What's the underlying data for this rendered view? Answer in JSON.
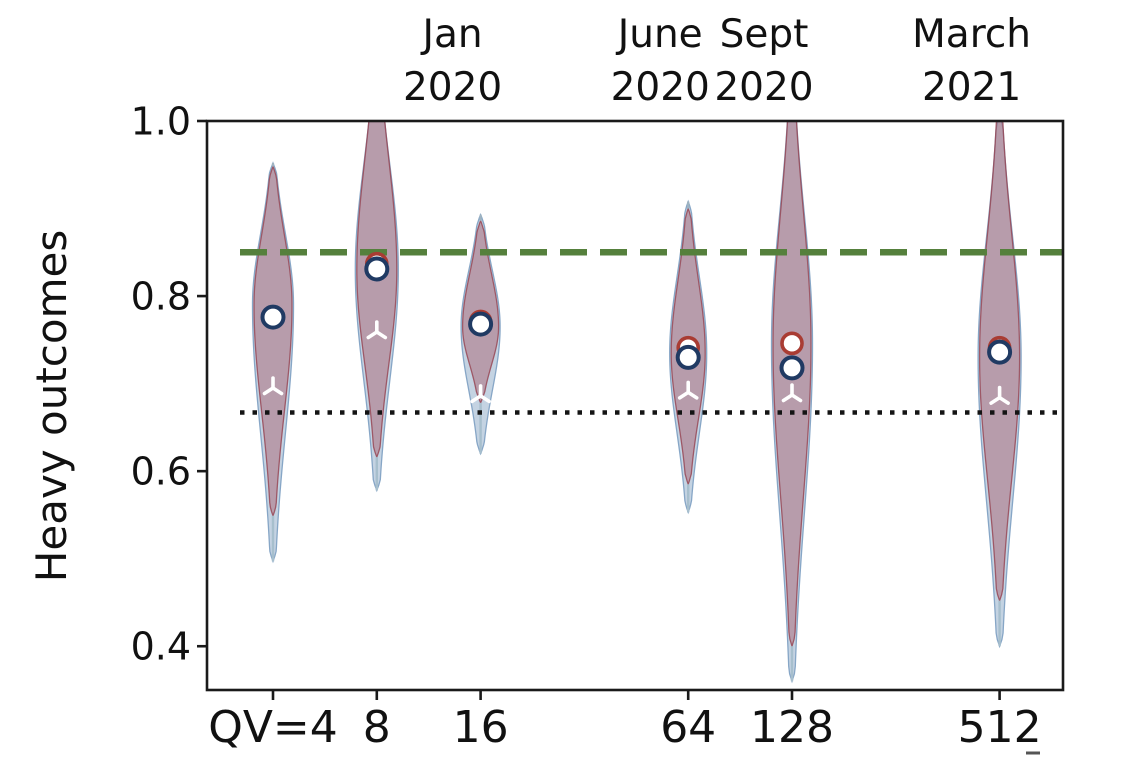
{
  "chart_data": {
    "type": "violin",
    "title": "",
    "ylabel": "Heavy outcomes",
    "xlabel": "",
    "ylim": [
      0.35,
      1.0
    ],
    "grid": false,
    "legend_position": "none",
    "yticks": [
      {
        "value": 1.0,
        "label": "1.0"
      },
      {
        "value": 0.8,
        "label": "0.8"
      },
      {
        "value": 0.6,
        "label": "0.6"
      },
      {
        "value": 0.4,
        "label": "0.4"
      }
    ],
    "x_categories": [
      "QV=4",
      "8",
      "16",
      "64",
      "128",
      "512"
    ],
    "top_group_labels": [
      {
        "line1": "Jan",
        "line2": "2020",
        "above_slot": 2
      },
      {
        "line1": "June",
        "line2": "2020",
        "above_slot": 4
      },
      {
        "line1": "Sept",
        "line2": "2020",
        "above_slot": 5
      },
      {
        "line1": "March",
        "line2": "2021",
        "above_slot": 7
      }
    ],
    "reference_lines": [
      {
        "name": "upper-dashed-green",
        "value": 0.85,
        "style": "dashed",
        "color": "#55803c"
      },
      {
        "name": "lower-dotted-black",
        "value": 0.667,
        "style": "dotted",
        "color": "#141414"
      }
    ],
    "violins": [
      {
        "category": "QV=4",
        "slot": 0,
        "red_circle": 0.776,
        "navy_circle": 0.776,
        "white_tri": 0.695,
        "blue_range": [
          0.497,
          0.952
        ],
        "pink_range": [
          0.549,
          0.948
        ],
        "peak": 0.79,
        "halfwidth": 19
      },
      {
        "category": "8",
        "slot": 1,
        "red_circle": 0.837,
        "navy_circle": 0.831,
        "white_tri": 0.759,
        "blue_range": [
          0.578,
          1.07
        ],
        "pink_range": [
          0.616,
          1.08
        ],
        "peak": 0.83,
        "halfwidth": 20
      },
      {
        "category": "16",
        "slot": 2,
        "red_circle": 0.771,
        "navy_circle": 0.768,
        "white_tri": 0.686,
        "blue_range": [
          0.62,
          0.893
        ],
        "pink_range": [
          0.678,
          0.886
        ],
        "peak": 0.765,
        "halfwidth": 18
      },
      {
        "category": "64",
        "slot": 4,
        "red_circle": 0.741,
        "navy_circle": 0.73,
        "white_tri": 0.69,
        "blue_range": [
          0.553,
          0.908
        ],
        "pink_range": [
          0.585,
          0.9
        ],
        "peak": 0.735,
        "halfwidth": 17
      },
      {
        "category": "128",
        "slot": 5,
        "red_circle": 0.746,
        "navy_circle": 0.718,
        "white_tri": 0.687,
        "blue_range": [
          0.36,
          1.04
        ],
        "pink_range": [
          0.4,
          1.045
        ],
        "peak": 0.745,
        "halfwidth": 19
      },
      {
        "category": "512",
        "slot": 7,
        "red_circle": 0.741,
        "navy_circle": 0.736,
        "white_tri": 0.684,
        "blue_range": [
          0.4,
          1.005
        ],
        "pink_range": [
          0.452,
          1.012
        ],
        "peak": 0.73,
        "halfwidth": 20
      }
    ],
    "colors": {
      "violin_blue_fill": "rgba(125,158,190,0.45)",
      "violin_blue_stroke": "rgba(130,162,196,0.95)",
      "violin_red_fill": "rgba(165,82,96,0.42)",
      "violin_red_stroke": "rgba(152,72,86,0.85)",
      "tail_line": "#a7bfcd",
      "top_cap_line": "#9fb3c0",
      "navy_marker": "#203a63",
      "red_marker": "#a93c33",
      "tri_marker": "#ffffff",
      "axis": "#1a1a1a"
    }
  }
}
